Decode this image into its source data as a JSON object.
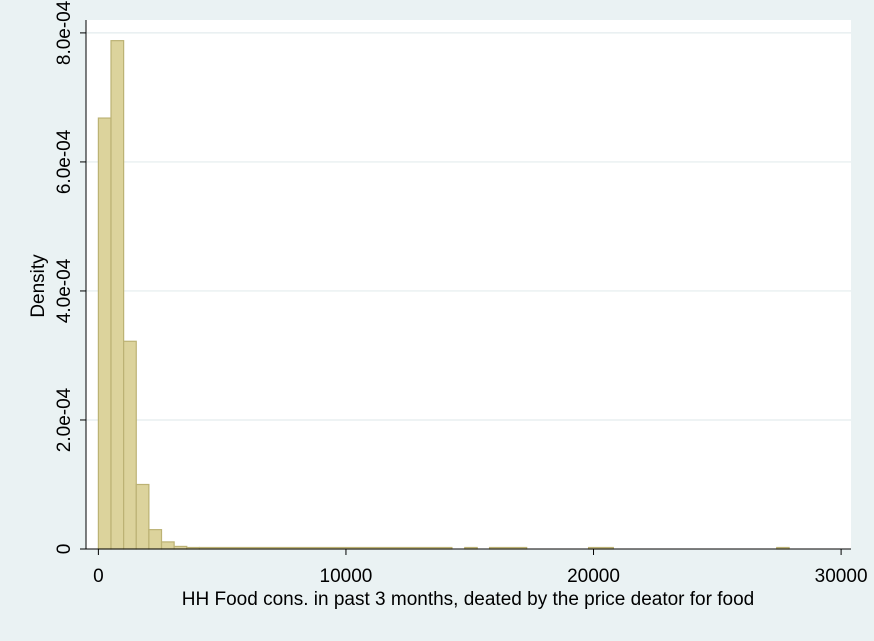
{
  "chart_data": {
    "type": "bar",
    "subtype": "histogram",
    "title": "",
    "xlabel": "HH Food cons. in past 3 months, deated by the price deator for food",
    "ylabel": "Density",
    "xlim": [
      -500,
      30400
    ],
    "ylim": [
      0,
      0.00082
    ],
    "xticks": [
      0,
      10000,
      20000,
      30000
    ],
    "xtick_labels": [
      "0",
      "10000",
      "20000",
      "30000"
    ],
    "yticks": [
      0,
      0.0002,
      0.0004,
      0.0006,
      0.0008
    ],
    "ytick_labels": [
      "0",
      "2.0e-04",
      "4.0e-04",
      "6.0e-04",
      "8.0e-04"
    ],
    "grid": true,
    "legend": "none",
    "bin_width": 510,
    "bins": [
      {
        "x0": 0,
        "x1": 510,
        "density": 0.000668
      },
      {
        "x0": 510,
        "x1": 1020,
        "density": 0.000788
      },
      {
        "x0": 1020,
        "x1": 1530,
        "density": 0.000322
      },
      {
        "x0": 1530,
        "x1": 2040,
        "density": 0.0001
      },
      {
        "x0": 2040,
        "x1": 2550,
        "density": 3e-05
      },
      {
        "x0": 2550,
        "x1": 3060,
        "density": 1.1e-05
      },
      {
        "x0": 3060,
        "x1": 3570,
        "density": 4e-06
      },
      {
        "x0": 3570,
        "x1": 4080,
        "density": 2e-06
      },
      {
        "x0": 4080,
        "x1": 14280,
        "density": 1.5e-06
      },
      {
        "x0": 14800,
        "x1": 15300,
        "density": 1.5e-06
      },
      {
        "x0": 15800,
        "x1": 17300,
        "density": 1.5e-06
      },
      {
        "x0": 19800,
        "x1": 20800,
        "density": 1.5e-06
      },
      {
        "x0": 27400,
        "x1": 27900,
        "density": 1.5e-06
      }
    ],
    "colors": {
      "background": "#eaf2f3",
      "plot_area": "#ffffff",
      "bar_fill": "#dcd39c",
      "bar_stroke": "#bcb274",
      "grid": "#e3ecee",
      "axis": "#000000"
    }
  }
}
